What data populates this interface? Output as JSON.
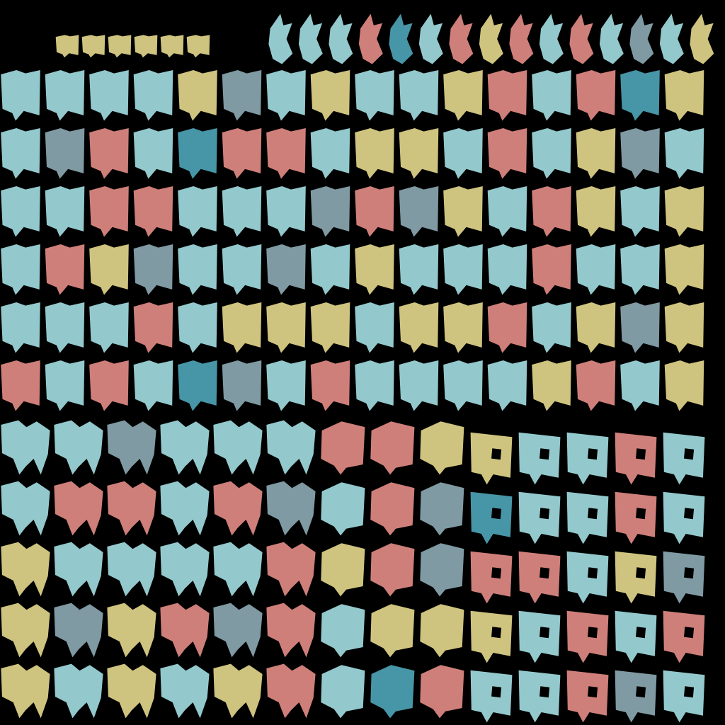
{
  "atlas": {
    "background": "#000000",
    "palette": {
      "cyan": "#93c9cd",
      "salmon": "#cf7f7a",
      "mustard": "#cfc47f",
      "slate": "#7f9aa3",
      "teal_dark": "#4796a8"
    },
    "shapes": [
      "notched-block",
      "hooked-block",
      "window-block",
      "double-hook",
      "tall-spike"
    ],
    "regions": [
      {
        "name": "spike-strip",
        "shape": "tall-spike",
        "rows": [
          [
            "cyan",
            "cyan",
            "cyan",
            "salmon",
            "teal_dark",
            "cyan",
            "salmon",
            "mustard",
            "salmon",
            "cyan",
            "salmon",
            "cyan",
            "slate",
            "cyan",
            "mustard"
          ]
        ]
      },
      {
        "name": "block-grid-main",
        "shape": "notched-block",
        "rows": [
          [
            "cyan",
            "cyan",
            "cyan",
            "cyan",
            "mustard",
            "slate",
            "cyan",
            "mustard",
            "cyan",
            "cyan",
            "mustard",
            "salmon",
            "cyan",
            "salmon",
            "teal_dark",
            "mustard"
          ],
          [
            "cyan",
            "slate",
            "salmon",
            "cyan",
            "teal_dark",
            "salmon",
            "salmon",
            "cyan",
            "mustard",
            "mustard",
            "cyan",
            "salmon",
            "cyan",
            "mustard",
            "slate",
            "cyan"
          ],
          [
            "cyan",
            "cyan",
            "salmon",
            "salmon",
            "cyan",
            "cyan",
            "cyan",
            "slate",
            "salmon",
            "slate",
            "mustard",
            "cyan",
            "salmon",
            "mustard",
            "cyan",
            "mustard"
          ],
          [
            "cyan",
            "salmon",
            "mustard",
            "slate",
            "cyan",
            "cyan",
            "slate",
            "cyan",
            "mustard",
            "cyan",
            "cyan",
            "cyan",
            "salmon",
            "cyan",
            "cyan",
            "mustard"
          ],
          [
            "cyan",
            "cyan",
            "cyan",
            "salmon",
            "cyan",
            "mustard",
            "mustard",
            "mustard",
            "cyan",
            "mustard",
            "mustard",
            "salmon",
            "cyan",
            "mustard",
            "slate",
            "mustard"
          ],
          [
            "salmon",
            "cyan",
            "salmon",
            "cyan",
            "teal_dark",
            "slate",
            "cyan",
            "salmon",
            "cyan",
            "cyan",
            "cyan",
            "cyan",
            "mustard",
            "salmon",
            "cyan",
            "mustard"
          ]
        ]
      },
      {
        "name": "double-hook-grid",
        "shape": "double-hook",
        "rows": [
          [
            "cyan",
            "cyan",
            "slate",
            "cyan",
            "cyan",
            "cyan"
          ],
          [
            "cyan",
            "salmon",
            "salmon",
            "cyan",
            "salmon",
            "slate"
          ],
          [
            "mustard",
            "cyan",
            "cyan",
            "cyan",
            "cyan",
            "salmon"
          ],
          [
            "mustard",
            "slate",
            "mustard",
            "salmon",
            "slate",
            "salmon"
          ],
          [
            "mustard",
            "cyan",
            "mustard",
            "cyan",
            "mustard",
            "salmon"
          ]
        ]
      },
      {
        "name": "hooked-block-grid",
        "shape": "hooked-block",
        "rows": [
          [
            "salmon",
            "salmon",
            "mustard"
          ],
          [
            "cyan",
            "salmon",
            "slate"
          ],
          [
            "mustard",
            "salmon",
            "slate"
          ],
          [
            "cyan",
            "mustard",
            "mustard"
          ],
          [
            "cyan",
            "teal_dark",
            "salmon"
          ]
        ]
      },
      {
        "name": "window-block-grid",
        "shape": "window-block",
        "rows": [
          [
            "mustard",
            "cyan",
            "cyan",
            "salmon",
            "cyan"
          ],
          [
            "teal_dark",
            "cyan",
            "cyan",
            "salmon",
            "cyan"
          ],
          [
            "salmon",
            "salmon",
            "cyan",
            "mustard",
            "slate"
          ],
          [
            "mustard",
            "cyan",
            "salmon",
            "cyan",
            "salmon"
          ],
          [
            "cyan",
            "cyan",
            "salmon",
            "slate",
            "cyan"
          ]
        ]
      },
      {
        "name": "swatch-bar",
        "shape": "notched-block",
        "rows": [
          [
            "mustard",
            "mustard",
            "mustard",
            "mustard",
            "mustard",
            "mustard"
          ]
        ]
      }
    ]
  }
}
